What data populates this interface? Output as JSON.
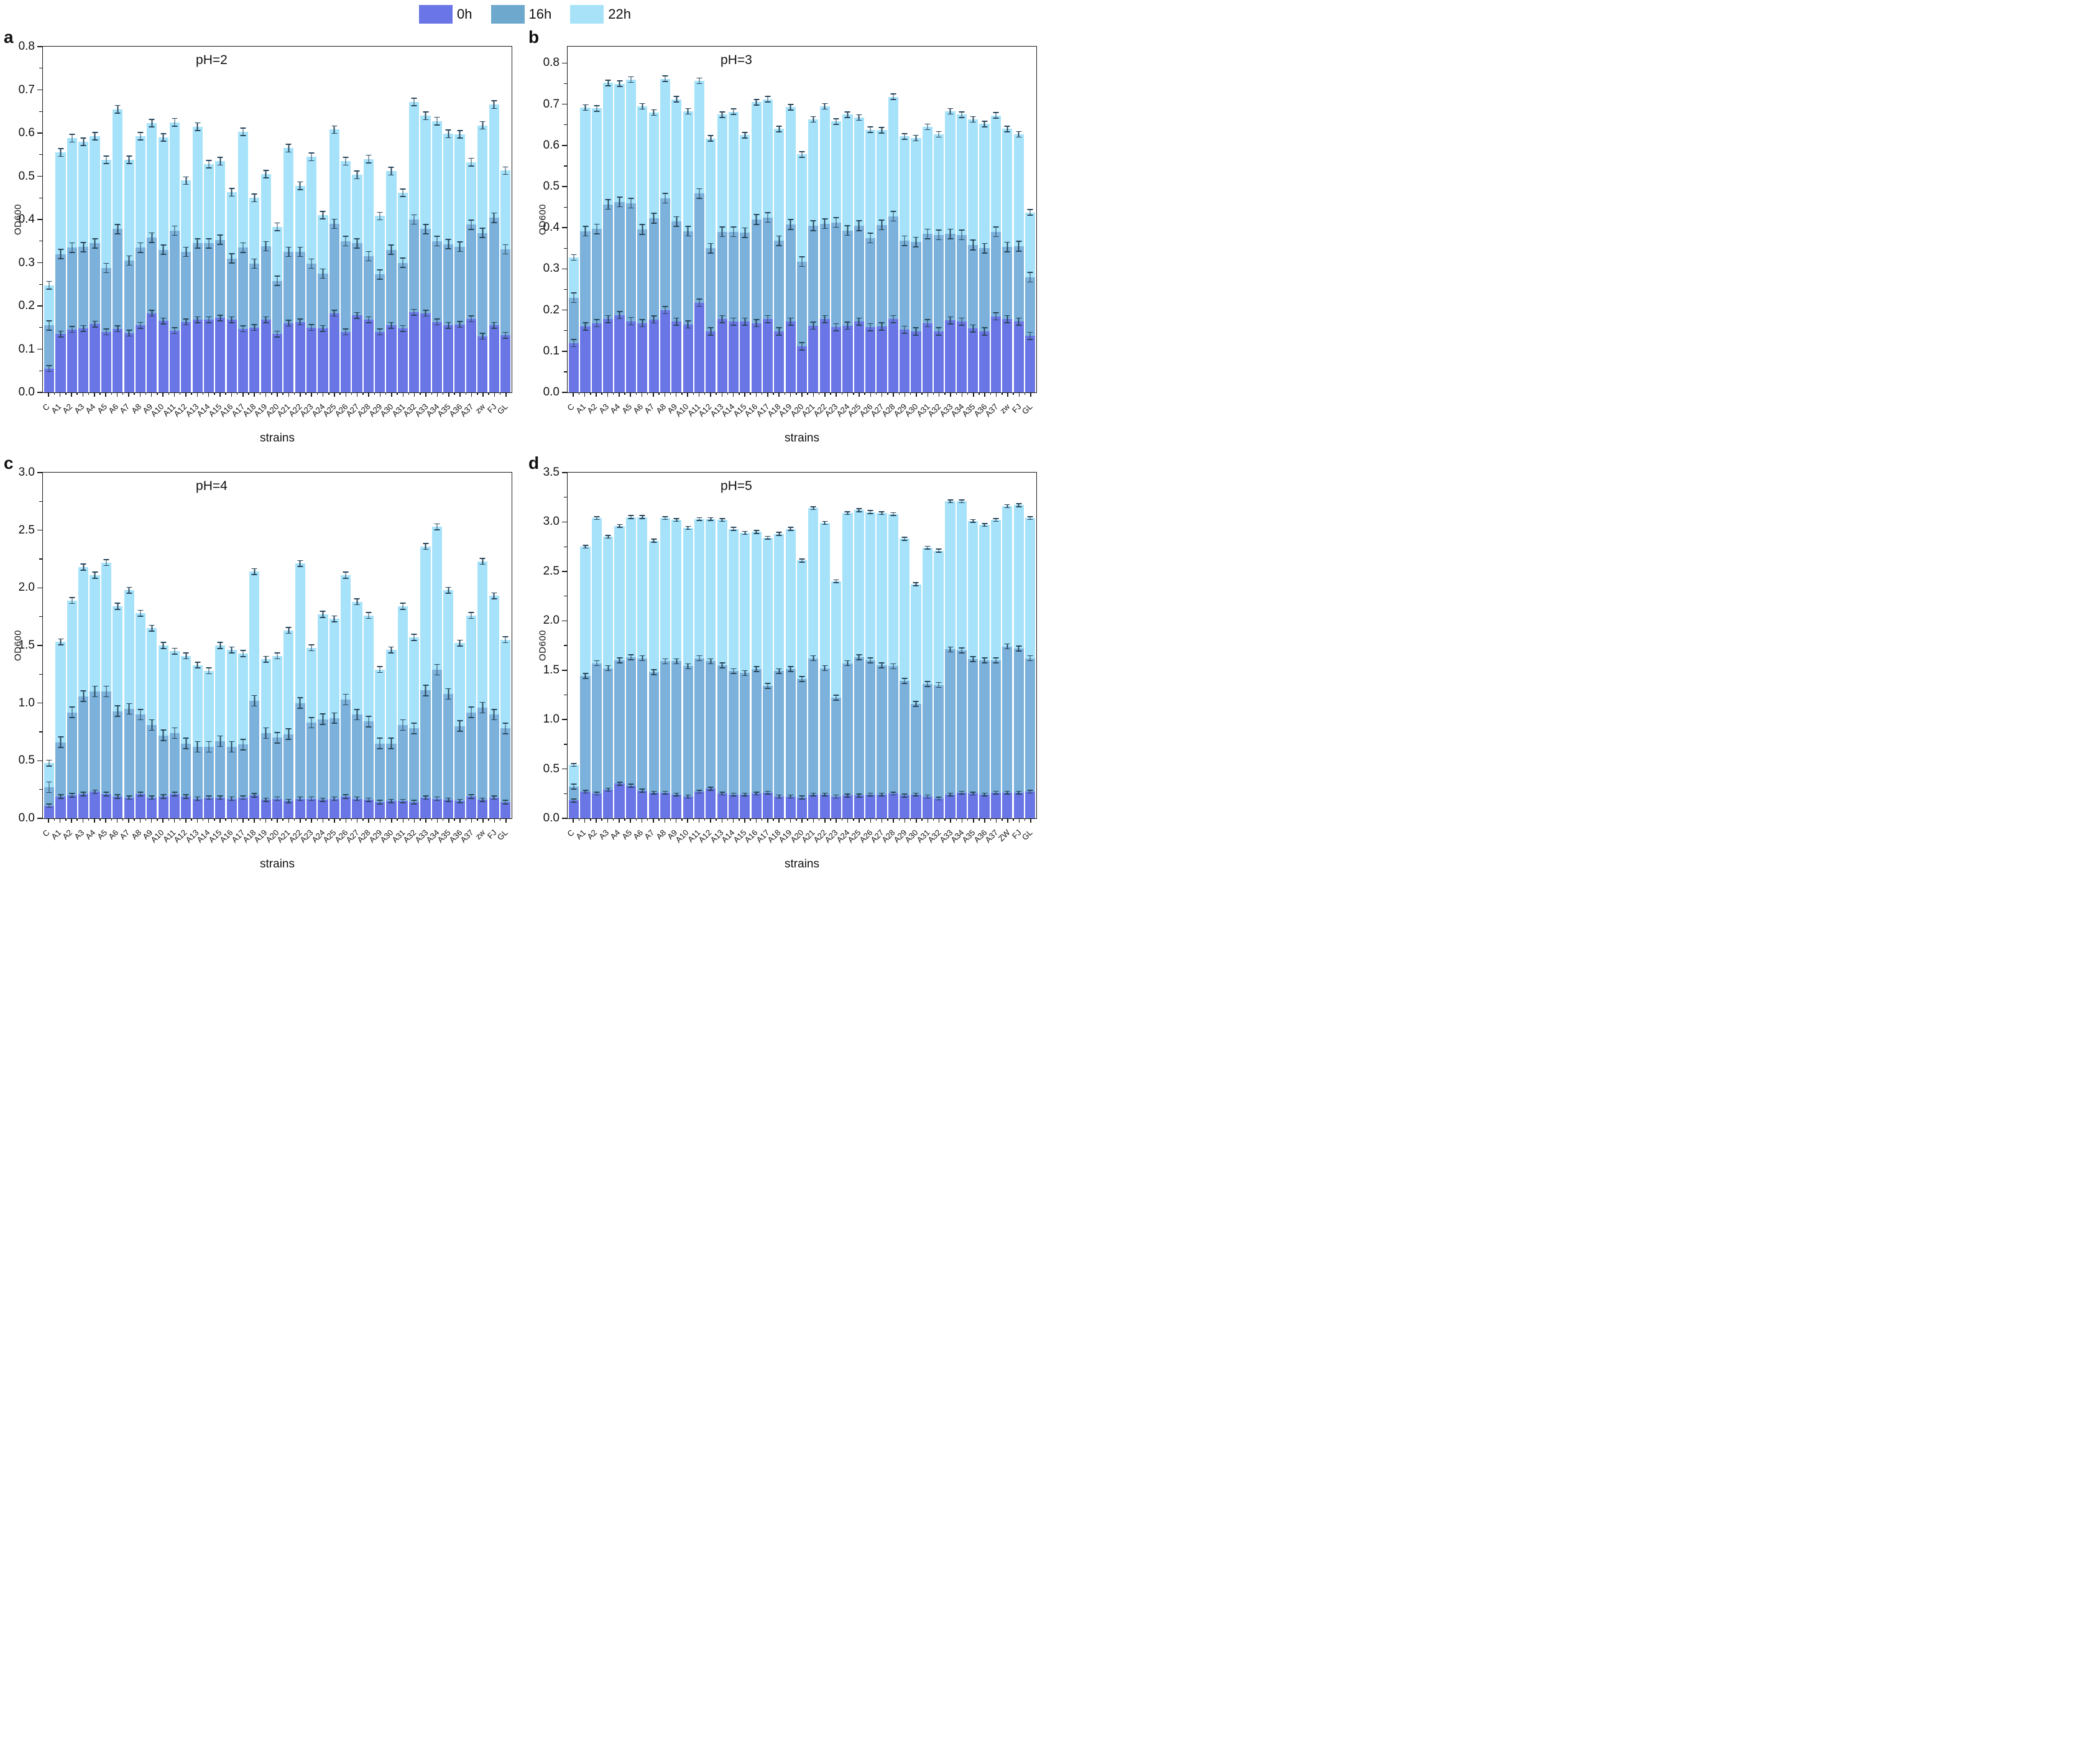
{
  "legend": {
    "items": [
      {
        "label": "0h",
        "color": "#6a75e8"
      },
      {
        "label": "16h",
        "color": "#6fa8cd"
      },
      {
        "label": "22h",
        "color": "#a8e2f8"
      }
    ]
  },
  "colors": {
    "bar_0h": "#6b76e6",
    "bar_16h": "#7bb1da",
    "bar_22h": "#a6e3fa",
    "error_bar": "#29485e",
    "axis": "#1a1a1a"
  },
  "chart_data": [
    {
      "type": "bar",
      "panel": "a",
      "title": "pH=2",
      "xlabel": "strains",
      "ylabel": "OD600",
      "ylim": [
        0,
        0.8
      ],
      "axis_top": 0.8,
      "yticks": [
        0.0,
        0.1,
        0.2,
        0.3,
        0.4,
        0.5,
        0.6,
        0.7,
        0.8
      ],
      "grid": false,
      "legend_position": "top-center-figure",
      "categories": [
        "C",
        "A1",
        "A2",
        "A3",
        "A4",
        "A5",
        "A6",
        "A7",
        "A8",
        "A9",
        "A10",
        "A11",
        "A12",
        "A13",
        "A14",
        "A15",
        "A16",
        "A17",
        "A18",
        "A19",
        "A20",
        "A21",
        "A22",
        "A23",
        "A24",
        "A25",
        "A26",
        "A27",
        "A28",
        "A29",
        "A30",
        "A31",
        "A32",
        "A33",
        "A34",
        "A35",
        "A36",
        "A37",
        "zw",
        "FJ",
        "GL"
      ],
      "series": [
        {
          "name": "0h",
          "values": [
            0.055,
            0.135,
            0.146,
            0.148,
            0.158,
            0.14,
            0.147,
            0.137,
            0.155,
            0.183,
            0.165,
            0.143,
            0.163,
            0.168,
            0.168,
            0.172,
            0.168,
            0.147,
            0.15,
            0.168,
            0.135,
            0.16,
            0.163,
            0.15,
            0.148,
            0.183,
            0.14,
            0.178,
            0.168,
            0.14,
            0.155,
            0.148,
            0.185,
            0.183,
            0.163,
            0.155,
            0.157,
            0.17,
            0.13,
            0.155,
            0.132
          ]
        },
        {
          "name": "16h",
          "values": [
            0.155,
            0.32,
            0.335,
            0.336,
            0.345,
            0.288,
            0.378,
            0.305,
            0.335,
            0.358,
            0.33,
            0.374,
            0.325,
            0.345,
            0.345,
            0.353,
            0.31,
            0.335,
            0.298,
            0.338,
            0.258,
            0.325,
            0.325,
            0.298,
            0.275,
            0.39,
            0.35,
            0.345,
            0.315,
            0.273,
            0.33,
            0.3,
            0.4,
            0.378,
            0.35,
            0.343,
            0.337,
            0.388,
            0.369,
            0.404,
            0.331
          ]
        },
        {
          "name": "22h",
          "values": [
            0.248,
            0.555,
            0.588,
            0.58,
            0.593,
            0.538,
            0.655,
            0.538,
            0.593,
            0.623,
            0.59,
            0.625,
            0.49,
            0.615,
            0.528,
            0.535,
            0.463,
            0.603,
            0.45,
            0.505,
            0.383,
            0.565,
            0.478,
            0.545,
            0.41,
            0.608,
            0.535,
            0.503,
            0.54,
            0.408,
            0.512,
            0.462,
            0.672,
            0.64,
            0.628,
            0.598,
            0.597,
            0.533,
            0.618,
            0.666,
            0.513
          ]
        }
      ],
      "errorbar_approx": [
        0.008,
        0.012,
        0.01
      ]
    },
    {
      "type": "bar",
      "panel": "b",
      "title": "pH=3",
      "xlabel": "strains",
      "ylabel": "OD600",
      "ylim": [
        0,
        0.84
      ],
      "axis_top": 0.84,
      "yticks": [
        0.0,
        0.1,
        0.2,
        0.3,
        0.4,
        0.5,
        0.6,
        0.7,
        0.8
      ],
      "grid": false,
      "categories": [
        "C",
        "A1",
        "A2",
        "A3",
        "A4",
        "A5",
        "A6",
        "A7",
        "A8",
        "A9",
        "A10",
        "A11",
        "A12",
        "A13",
        "A14",
        "A15",
        "A16",
        "A17",
        "A18",
        "A19",
        "A20",
        "A21",
        "A22",
        "A23",
        "A24",
        "A25",
        "A26",
        "A27",
        "A28",
        "A29",
        "A30",
        "A31",
        "A32",
        "A33",
        "A34",
        "A35",
        "A36",
        "A37",
        "zw",
        "FJ",
        "GL"
      ],
      "series": [
        {
          "name": "0h",
          "values": [
            0.12,
            0.16,
            0.168,
            0.178,
            0.188,
            0.173,
            0.168,
            0.177,
            0.2,
            0.172,
            0.165,
            0.218,
            0.148,
            0.178,
            0.172,
            0.172,
            0.168,
            0.178,
            0.148,
            0.172,
            0.112,
            0.162,
            0.178,
            0.158,
            0.162,
            0.172,
            0.158,
            0.16,
            0.178,
            0.152,
            0.148,
            0.168,
            0.148,
            0.175,
            0.172,
            0.155,
            0.148,
            0.185,
            0.178,
            0.172,
            0.137
          ]
        },
        {
          "name": "16h",
          "values": [
            0.23,
            0.392,
            0.397,
            0.457,
            0.463,
            0.46,
            0.396,
            0.423,
            0.472,
            0.415,
            0.392,
            0.483,
            0.35,
            0.39,
            0.39,
            0.388,
            0.42,
            0.425,
            0.368,
            0.408,
            0.318,
            0.405,
            0.41,
            0.413,
            0.393,
            0.405,
            0.375,
            0.407,
            0.428,
            0.368,
            0.365,
            0.385,
            0.383,
            0.385,
            0.383,
            0.358,
            0.35,
            0.39,
            0.353,
            0.355,
            0.28
          ]
        },
        {
          "name": "22h",
          "values": [
            0.328,
            0.692,
            0.69,
            0.752,
            0.75,
            0.76,
            0.695,
            0.68,
            0.762,
            0.712,
            0.683,
            0.757,
            0.617,
            0.675,
            0.682,
            0.625,
            0.705,
            0.712,
            0.64,
            0.693,
            0.578,
            0.663,
            0.695,
            0.658,
            0.675,
            0.668,
            0.638,
            0.637,
            0.718,
            0.622,
            0.618,
            0.645,
            0.627,
            0.683,
            0.675,
            0.663,
            0.652,
            0.673,
            0.64,
            0.627,
            0.437
          ]
        }
      ],
      "errorbar_approx": [
        0.01,
        0.013,
        0.008
      ]
    },
    {
      "type": "bar",
      "panel": "c",
      "title": "pH=4",
      "xlabel": "strains",
      "ylabel": "OD600",
      "ylim": [
        0,
        3.0
      ],
      "axis_top": 3.0,
      "yticks": [
        0.0,
        0.5,
        1.0,
        1.5,
        2.0,
        2.5,
        3.0
      ],
      "grid": false,
      "categories": [
        "C",
        "A1",
        "A2",
        "A3",
        "A4",
        "A5",
        "A6",
        "A7",
        "A8",
        "A9",
        "A10",
        "A11",
        "A12",
        "A13",
        "A14",
        "A15",
        "A16",
        "A17",
        "A18",
        "A19",
        "A20",
        "A21",
        "A22",
        "A23",
        "A24",
        "A25",
        "A26",
        "A27",
        "A28",
        "A29",
        "A30",
        "A31",
        "A32",
        "A33",
        "A34",
        "A35",
        "A36",
        "A37",
        "zw",
        "FJ",
        "GL"
      ],
      "series": [
        {
          "name": "0h",
          "values": [
            0.11,
            0.19,
            0.2,
            0.21,
            0.23,
            0.21,
            0.19,
            0.18,
            0.21,
            0.18,
            0.19,
            0.21,
            0.19,
            0.17,
            0.18,
            0.18,
            0.17,
            0.18,
            0.2,
            0.16,
            0.17,
            0.15,
            0.17,
            0.17,
            0.16,
            0.17,
            0.19,
            0.17,
            0.16,
            0.14,
            0.15,
            0.15,
            0.14,
            0.18,
            0.17,
            0.16,
            0.15,
            0.19,
            0.16,
            0.18,
            0.14
          ]
        },
        {
          "name": "16h",
          "values": [
            0.27,
            0.66,
            0.92,
            1.06,
            1.1,
            1.1,
            0.93,
            0.95,
            0.9,
            0.81,
            0.72,
            0.74,
            0.65,
            0.62,
            0.62,
            0.67,
            0.62,
            0.64,
            1.02,
            0.74,
            0.7,
            0.73,
            1.0,
            0.83,
            0.86,
            0.87,
            1.03,
            0.9,
            0.84,
            0.65,
            0.65,
            0.81,
            0.78,
            1.11,
            1.29,
            1.08,
            0.8,
            0.92,
            0.96,
            0.9,
            0.78
          ]
        },
        {
          "name": "22h",
          "values": [
            0.48,
            1.53,
            1.89,
            2.18,
            2.11,
            2.22,
            1.84,
            1.98,
            1.78,
            1.65,
            1.5,
            1.45,
            1.41,
            1.33,
            1.28,
            1.5,
            1.46,
            1.43,
            2.14,
            1.38,
            1.41,
            1.63,
            2.21,
            1.48,
            1.77,
            1.73,
            2.11,
            1.88,
            1.76,
            1.29,
            1.46,
            1.84,
            1.57,
            2.36,
            2.53,
            1.98,
            1.52,
            1.76,
            2.23,
            1.93,
            1.55
          ]
        }
      ],
      "errorbar_approx": [
        0.02,
        0.05,
        0.03
      ]
    },
    {
      "type": "bar",
      "panel": "d",
      "title": "pH=5",
      "xlabel": "strains",
      "ylabel": "OD600",
      "ylim": [
        0,
        3.5
      ],
      "axis_top": 3.5,
      "yticks": [
        0.0,
        0.5,
        1.0,
        1.5,
        2.0,
        2.5,
        3.0,
        3.5
      ],
      "grid": false,
      "categories": [
        "C",
        "A1",
        "A2",
        "A3",
        "A4",
        "A5",
        "A6",
        "A7",
        "A8",
        "A9",
        "A10",
        "A11",
        "A12",
        "A13",
        "A14",
        "A15",
        "A16",
        "A17",
        "A18",
        "A19",
        "A20",
        "A21",
        "A22",
        "A23",
        "A24",
        "A25",
        "A26",
        "A27",
        "A28",
        "A29",
        "A30",
        "A31",
        "A32",
        "A33",
        "A34",
        "A35",
        "A36",
        "A37",
        "ZW",
        "FJ",
        "GL"
      ],
      "series": [
        {
          "name": "0h",
          "values": [
            0.18,
            0.27,
            0.25,
            0.29,
            0.35,
            0.33,
            0.28,
            0.26,
            0.26,
            0.24,
            0.22,
            0.27,
            0.3,
            0.25,
            0.24,
            0.24,
            0.25,
            0.26,
            0.22,
            0.22,
            0.21,
            0.24,
            0.24,
            0.22,
            0.23,
            0.23,
            0.24,
            0.24,
            0.25,
            0.23,
            0.24,
            0.22,
            0.2,
            0.24,
            0.26,
            0.25,
            0.24,
            0.26,
            0.26,
            0.26,
            0.27
          ]
        },
        {
          "name": "16h",
          "values": [
            0.32,
            1.44,
            1.57,
            1.52,
            1.6,
            1.63,
            1.62,
            1.48,
            1.59,
            1.59,
            1.54,
            1.62,
            1.59,
            1.55,
            1.49,
            1.47,
            1.51,
            1.34,
            1.49,
            1.51,
            1.41,
            1.62,
            1.52,
            1.22,
            1.57,
            1.63,
            1.6,
            1.55,
            1.54,
            1.39,
            1.16,
            1.36,
            1.35,
            1.71,
            1.7,
            1.61,
            1.6,
            1.6,
            1.74,
            1.72,
            1.62
          ]
        },
        {
          "name": "22h",
          "values": [
            0.54,
            2.75,
            3.04,
            2.85,
            2.96,
            3.05,
            3.05,
            2.81,
            3.04,
            3.02,
            2.94,
            3.03,
            3.03,
            3.02,
            2.93,
            2.89,
            2.9,
            2.84,
            2.88,
            2.93,
            2.61,
            3.14,
            2.99,
            2.4,
            3.09,
            3.12,
            3.1,
            3.09,
            3.08,
            2.83,
            2.37,
            2.74,
            2.71,
            3.21,
            3.21,
            3.01,
            2.97,
            3.02,
            3.16,
            3.17,
            3.04
          ]
        }
      ],
      "errorbar_approx": [
        0.02,
        0.03,
        0.02
      ]
    }
  ]
}
